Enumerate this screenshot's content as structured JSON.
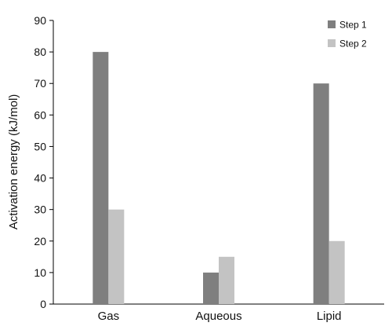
{
  "chart_data": {
    "type": "bar",
    "categories": [
      "Gas",
      "Aqueous",
      "Lipid"
    ],
    "series": [
      {
        "name": "Step 1",
        "values": [
          80,
          10,
          70
        ],
        "color": "#7f7f7f"
      },
      {
        "name": "Step 2",
        "values": [
          30,
          15,
          20
        ],
        "color": "#c3c3c3"
      }
    ],
    "ylabel": "Activation energy (kJ/mol)",
    "ylim": [
      0,
      90
    ],
    "yticks": [
      0,
      10,
      20,
      30,
      40,
      50,
      60,
      70,
      80,
      90
    ],
    "grid": false,
    "legend_position": "top-right"
  }
}
